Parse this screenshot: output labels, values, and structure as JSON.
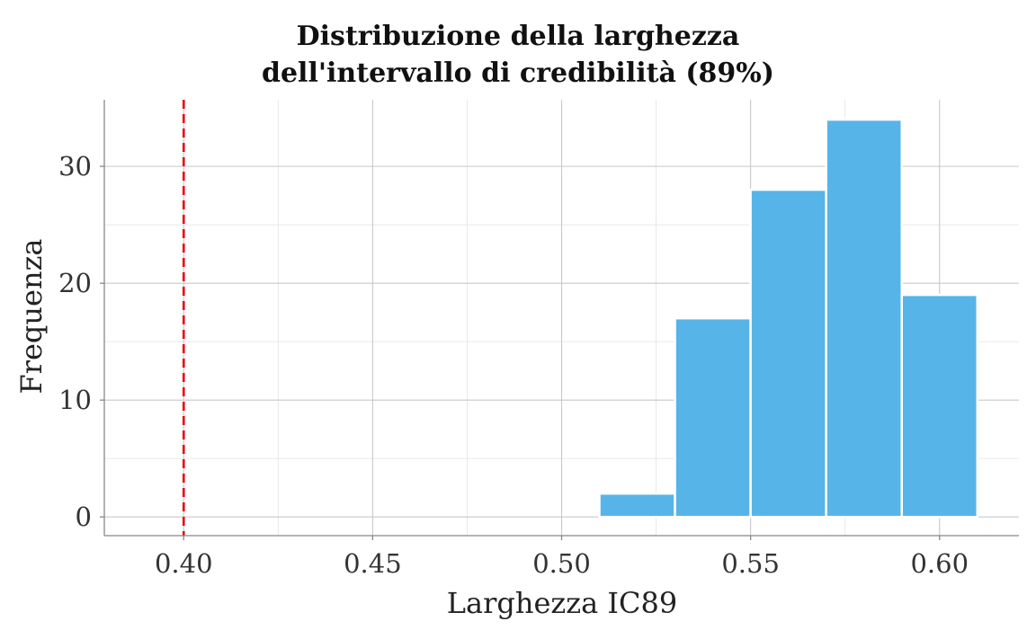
{
  "chart_data": {
    "type": "bar",
    "title": "Distribuzione della larghezza\ndell'intervallo di credibilità (89%)",
    "xlabel": "Larghezza IC89",
    "ylabel": "Frequenza",
    "xlim": [
      0.379,
      0.621
    ],
    "ylim": [
      -1.6,
      35.7
    ],
    "x_ticks": [
      "0.40",
      "0.45",
      "0.50",
      "0.55",
      "0.60"
    ],
    "y_ticks": [
      "0",
      "10",
      "20",
      "30"
    ],
    "bin_width": 0.02,
    "bins": [
      {
        "start": 0.39,
        "end": 0.41,
        "count": 0
      },
      {
        "start": 0.41,
        "end": 0.43,
        "count": 0
      },
      {
        "start": 0.43,
        "end": 0.45,
        "count": 0
      },
      {
        "start": 0.45,
        "end": 0.47,
        "count": 0
      },
      {
        "start": 0.47,
        "end": 0.49,
        "count": 0
      },
      {
        "start": 0.49,
        "end": 0.51,
        "count": 0
      },
      {
        "start": 0.51,
        "end": 0.53,
        "count": 2
      },
      {
        "start": 0.53,
        "end": 0.55,
        "count": 17
      },
      {
        "start": 0.55,
        "end": 0.57,
        "count": 28
      },
      {
        "start": 0.57,
        "end": 0.59,
        "count": 34
      },
      {
        "start": 0.59,
        "end": 0.61,
        "count": 19
      }
    ],
    "reference_line": {
      "x": 0.4,
      "color": "#e8000b",
      "style": "dashed"
    },
    "bar_color": "#56b4e9",
    "grid": true,
    "legend": "none"
  }
}
